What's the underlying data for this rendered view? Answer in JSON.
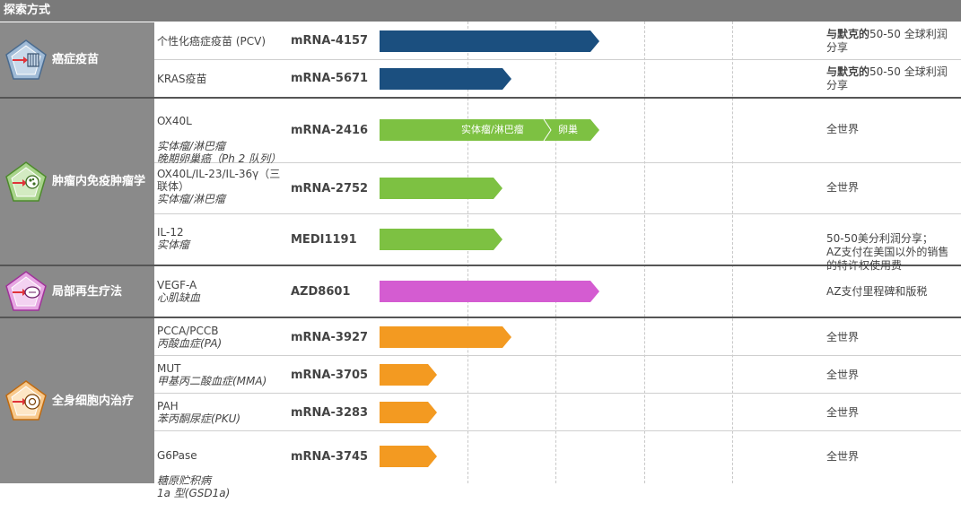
{
  "header": {
    "title": "探索方式"
  },
  "colors": {
    "header": "#7a7a7a",
    "category_bg": "#8a8a8a",
    "vaccine": "#1b4f7f",
    "immuno": "#7dc142",
    "regen": "#d45cd1",
    "intracellular": "#f39a21"
  },
  "categories": [
    {
      "label": "癌症疫苗",
      "icon": "vaccine-pentagon-icon"
    },
    {
      "label": "肿瘤内免疫肿瘤学",
      "icon": "immuno-oncology-pentagon-icon"
    },
    {
      "label": "局部再生疗法",
      "icon": "regenerative-pentagon-icon"
    },
    {
      "label": "全身细胞内治疗",
      "icon": "intracellular-pentagon-icon"
    }
  ],
  "rows": [
    {
      "name": "个性化癌症疫苗 (PCV)",
      "indication": "",
      "code": "mRNA-4157",
      "note_bold": "与默克的",
      "note": "50-50 全球利润分享",
      "progress": 0.5
    },
    {
      "name": "KRAS疫苗",
      "indication": "",
      "code": "mRNA-5671",
      "note_bold": "与默克的",
      "note": "50-50 全球利润分享",
      "progress": 0.3
    },
    {
      "name": "OX40L",
      "indication": "实体瘤/淋巴瘤\n晚期卵巢癌（Ph 2 队列）",
      "code": "mRNA-2416",
      "note_bold": "",
      "note": "全世界",
      "progress": 0.5,
      "segments": [
        "实体瘤/淋巴瘤",
        "卵巢"
      ]
    },
    {
      "name": "OX40L/IL-23/IL-36γ（三联体）",
      "indication": "实体瘤/淋巴瘤",
      "code": "mRNA-2752",
      "note_bold": "",
      "note": "全世界",
      "progress": 0.28
    },
    {
      "name": "IL-12",
      "indication": "实体瘤",
      "code": "MEDI1191",
      "note_bold": "",
      "note": "50-50美分利润分享；\nAZ支付在美国以外的销售的特许权使用费",
      "progress": 0.28
    },
    {
      "name": "VEGF-A",
      "indication": "心肌缺血",
      "code": "AZD8601",
      "note_bold": "",
      "note": "AZ支付里程碑和版税",
      "progress": 0.5
    },
    {
      "name": "PCCA/PCCB",
      "indication": "丙酸血症(PA)",
      "code": "mRNA-3927",
      "note_bold": "",
      "note": "全世界",
      "progress": 0.3
    },
    {
      "name": "MUT",
      "indication": "甲基丙二酸血症(MMA)",
      "code": "mRNA-3705",
      "note_bold": "",
      "note": "全世界",
      "progress": 0.13
    },
    {
      "name": "PAH",
      "indication": "苯丙酮尿症(PKU)",
      "code": "mRNA-3283",
      "note_bold": "",
      "note": "全世界",
      "progress": 0.13
    },
    {
      "name": "G6Pase",
      "indication": "糖原贮积病\n1a 型(GSD1a)",
      "code": "mRNA-3745",
      "note_bold": "",
      "note": "全世界",
      "progress": 0.13
    }
  ]
}
